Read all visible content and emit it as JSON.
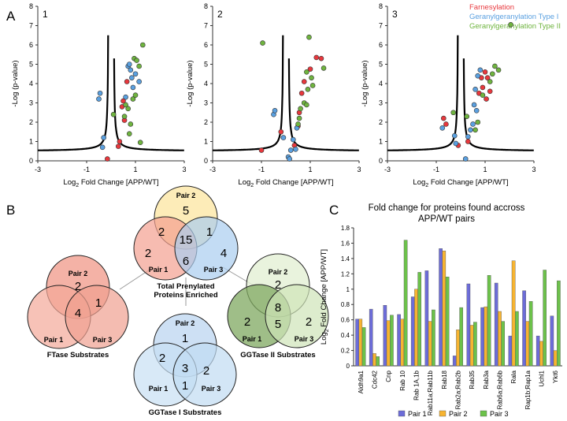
{
  "colors": {
    "farnesylation": "#e8383d",
    "ggtase1": "#5aa0e0",
    "ggtase2": "#6fb43f",
    "pair1": "#6c6cd8",
    "pair2": "#f7b431",
    "pair3": "#6cc24a"
  },
  "panel_a": {
    "label": "A",
    "x_ticks": [
      "-3",
      "-1",
      "1",
      "3"
    ],
    "y_ticks": [
      "0",
      "1",
      "2",
      "3",
      "4",
      "5",
      "6",
      "7",
      "8"
    ],
    "xlabel_pre": "Log",
    "xlabel_sub": "2",
    "xlabel_post": " Fold Change [APP/WT]",
    "ylabel": "-Log (p-value)",
    "legend": [
      "Farnesylation",
      "Geranylgeranylation Type I",
      "Geranylgeranylation Type II"
    ],
    "plots": [
      {
        "id": "1",
        "points": [
          {
            "x": 0.35,
            "y": 1.0,
            "c": "F"
          },
          {
            "x": 0.45,
            "y": 2.8,
            "c": "F"
          },
          {
            "x": 0.55,
            "y": 2.1,
            "c": "F"
          },
          {
            "x": 0.5,
            "y": 3.1,
            "c": "F"
          },
          {
            "x": -0.15,
            "y": 0.1,
            "c": "F"
          },
          {
            "x": 0.3,
            "y": 0.75,
            "c": "F"
          },
          {
            "x": 0.65,
            "y": 4.1,
            "c": "F"
          },
          {
            "x": 0.7,
            "y": 4.9,
            "c": "G1"
          },
          {
            "x": 0.85,
            "y": 4.3,
            "c": "G1"
          },
          {
            "x": 0.9,
            "y": 3.8,
            "c": "G1"
          },
          {
            "x": 1.0,
            "y": 4.5,
            "c": "G1"
          },
          {
            "x": 1.15,
            "y": 4.1,
            "c": "G1"
          },
          {
            "x": 0.8,
            "y": 4.7,
            "c": "G1"
          },
          {
            "x": 0.6,
            "y": 3.3,
            "c": "G1"
          },
          {
            "x": -0.45,
            "y": 3.5,
            "c": "G1"
          },
          {
            "x": -0.5,
            "y": 3.2,
            "c": "G1"
          },
          {
            "x": -0.3,
            "y": 1.2,
            "c": "G1"
          },
          {
            "x": -0.35,
            "y": 0.7,
            "c": "G1"
          },
          {
            "x": 0.75,
            "y": 5.0,
            "c": "G1"
          },
          {
            "x": 1.3,
            "y": 6.0,
            "c": "G2"
          },
          {
            "x": 0.95,
            "y": 5.3,
            "c": "G2"
          },
          {
            "x": 1.05,
            "y": 5.2,
            "c": "G2"
          },
          {
            "x": 1.15,
            "y": 4.9,
            "c": "G2"
          },
          {
            "x": 0.9,
            "y": 3.2,
            "c": "G2"
          },
          {
            "x": 0.6,
            "y": 2.9,
            "c": "G2"
          },
          {
            "x": 0.7,
            "y": 2.7,
            "c": "G2"
          },
          {
            "x": 0.55,
            "y": 2.3,
            "c": "G2"
          },
          {
            "x": 0.1,
            "y": 2.4,
            "c": "G2"
          },
          {
            "x": 0.8,
            "y": 1.9,
            "c": "G2"
          },
          {
            "x": 1.2,
            "y": 0.95,
            "c": "G2"
          },
          {
            "x": 0.75,
            "y": 1.4,
            "c": "G2"
          },
          {
            "x": 1.0,
            "y": 3.4,
            "c": "G2"
          }
        ]
      },
      {
        "id": "2",
        "points": [
          {
            "x": 1.25,
            "y": 5.35,
            "c": "F"
          },
          {
            "x": 1.45,
            "y": 5.3,
            "c": "F"
          },
          {
            "x": 1.0,
            "y": 4.75,
            "c": "F"
          },
          {
            "x": 0.75,
            "y": 4.1,
            "c": "F"
          },
          {
            "x": 0.65,
            "y": 3.5,
            "c": "F"
          },
          {
            "x": 0.55,
            "y": 2.5,
            "c": "F"
          },
          {
            "x": -0.2,
            "y": 1.5,
            "c": "F"
          },
          {
            "x": -1.0,
            "y": 0.55,
            "c": "F"
          },
          {
            "x": 0.35,
            "y": 0.8,
            "c": "F"
          },
          {
            "x": 0.5,
            "y": 1.8,
            "c": "F"
          },
          {
            "x": -0.5,
            "y": 2.4,
            "c": "G1"
          },
          {
            "x": -0.45,
            "y": 2.6,
            "c": "G1"
          },
          {
            "x": -0.1,
            "y": 1.2,
            "c": "G1"
          },
          {
            "x": 0.1,
            "y": 0.2,
            "c": "G1"
          },
          {
            "x": 0.2,
            "y": 0.55,
            "c": "G1"
          },
          {
            "x": 0.3,
            "y": 1.1,
            "c": "G1"
          },
          {
            "x": 0.15,
            "y": 0.1,
            "c": "G1"
          },
          {
            "x": 0.45,
            "y": 1.7,
            "c": "G1"
          },
          {
            "x": 0.4,
            "y": 0.6,
            "c": "G1"
          },
          {
            "x": 0.95,
            "y": 6.4,
            "c": "G2"
          },
          {
            "x": -0.95,
            "y": 6.1,
            "c": "G2"
          },
          {
            "x": 0.85,
            "y": 4.6,
            "c": "G2"
          },
          {
            "x": 1.05,
            "y": 4.3,
            "c": "G2"
          },
          {
            "x": 1.1,
            "y": 3.9,
            "c": "G2"
          },
          {
            "x": 0.9,
            "y": 3.7,
            "c": "G2"
          },
          {
            "x": 0.75,
            "y": 3.0,
            "c": "G2"
          },
          {
            "x": 0.85,
            "y": 2.9,
            "c": "G2"
          },
          {
            "x": 0.6,
            "y": 2.7,
            "c": "G2"
          },
          {
            "x": 0.55,
            "y": 2.2,
            "c": "G2"
          },
          {
            "x": 0.5,
            "y": 1.9,
            "c": "G2"
          },
          {
            "x": 1.55,
            "y": 4.8,
            "c": "G2"
          }
        ]
      },
      {
        "id": "3",
        "points": [
          {
            "x": 1.0,
            "y": 4.6,
            "c": "F"
          },
          {
            "x": 1.1,
            "y": 4.3,
            "c": "F"
          },
          {
            "x": 0.85,
            "y": 4.3,
            "c": "F"
          },
          {
            "x": 0.9,
            "y": 3.8,
            "c": "F"
          },
          {
            "x": 1.2,
            "y": 3.6,
            "c": "F"
          },
          {
            "x": 0.75,
            "y": 3.5,
            "c": "F"
          },
          {
            "x": 1.05,
            "y": 3.2,
            "c": "F"
          },
          {
            "x": -0.7,
            "y": 2.2,
            "c": "F"
          },
          {
            "x": -0.6,
            "y": 1.9,
            "c": "F"
          },
          {
            "x": -0.1,
            "y": 0.8,
            "c": "F"
          },
          {
            "x": 0.3,
            "y": 1.0,
            "c": "F"
          },
          {
            "x": 0.8,
            "y": 4.7,
            "c": "G1"
          },
          {
            "x": 0.7,
            "y": 4.4,
            "c": "G1"
          },
          {
            "x": 0.6,
            "y": 3.7,
            "c": "G1"
          },
          {
            "x": 0.55,
            "y": 2.9,
            "c": "G1"
          },
          {
            "x": 0.65,
            "y": 2.6,
            "c": "G1"
          },
          {
            "x": 0.5,
            "y": 1.9,
            "c": "G1"
          },
          {
            "x": 0.4,
            "y": 1.6,
            "c": "G1"
          },
          {
            "x": -0.25,
            "y": 1.3,
            "c": "G1"
          },
          {
            "x": -0.2,
            "y": 0.9,
            "c": "G1"
          },
          {
            "x": 0.2,
            "y": 0.1,
            "c": "G1"
          },
          {
            "x": -0.75,
            "y": 1.7,
            "c": "G1"
          },
          {
            "x": 0.3,
            "y": 1.25,
            "c": "G1"
          },
          {
            "x": 2.05,
            "y": 7.05,
            "c": "G2"
          },
          {
            "x": 1.4,
            "y": 4.9,
            "c": "G2"
          },
          {
            "x": 1.55,
            "y": 4.7,
            "c": "G2"
          },
          {
            "x": 1.3,
            "y": 4.5,
            "c": "G2"
          },
          {
            "x": 1.2,
            "y": 4.1,
            "c": "G2"
          },
          {
            "x": 0.9,
            "y": 3.4,
            "c": "G2"
          },
          {
            "x": 0.7,
            "y": 2.0,
            "c": "G2"
          },
          {
            "x": 0.6,
            "y": 1.6,
            "c": "G2"
          },
          {
            "x": 0.25,
            "y": 2.3,
            "c": "G2"
          },
          {
            "x": -0.3,
            "y": 2.5,
            "c": "G2"
          }
        ]
      }
    ]
  },
  "panel_b": {
    "label": "B",
    "label_pair1": "Pair 1",
    "label_pair2": "Pair 2",
    "label_pair3": "Pair 3",
    "total": {
      "title_line1": "Total Prenylated",
      "title_line2": "Proteins Enriched",
      "n_p2": "5",
      "n_p12": "2",
      "n_p23": "1",
      "n_all": "15",
      "n_p1": "2",
      "n_p3": "4",
      "n_p13": "6"
    },
    "ftase": {
      "title": "FTase Substrates",
      "n_p2": "2",
      "n_p23": "1",
      "n_all": "4"
    },
    "ggt1": {
      "title": "GGTase I Substrates",
      "n_p2": "1",
      "n_p12": "2",
      "n_all": "3",
      "n_p3": "2",
      "n_p13": "1"
    },
    "ggt2": {
      "title": "GGTase II Substrates",
      "n_p2": "2",
      "n_all": "8",
      "n_p1": "2",
      "n_p3": "2",
      "n_p13": "5"
    }
  },
  "panel_c": {
    "label": "C",
    "ylabel_pre": "Log",
    "ylabel_sub": "2",
    "ylabel_post": " Fold Change [APP/WT]"
  },
  "chart_data": [
    {
      "type": "bar",
      "title": "Fold change for proteins found accross APP/WT pairs",
      "title_line1": "Fold change for proteins found accross",
      "title_line2": "APP/WT pairs",
      "ylabel": "Log2 Fold Change [APP/WT]",
      "ylim": [
        0,
        1.8
      ],
      "y_ticks": [
        "0",
        "0.2",
        "0.4",
        "0.6",
        "0.8",
        "1",
        "1.2",
        "1.4",
        "1.6",
        "1.8"
      ],
      "categories": [
        "Aldh9a1",
        "Cdc42",
        "Cnp",
        "Rab 10",
        "Rab 1A,1b",
        "Rab11a;Rab11b",
        "Rab18",
        "Rab2a;Rab2b",
        "Rab35",
        "Rab3a",
        "Rab6a;Rab6b",
        "Rala",
        "Rap1b;Rap1a",
        "Uchl1",
        "Ykt6"
      ],
      "series": [
        {
          "name": "Pair 1",
          "values": [
            0.61,
            0.74,
            0.79,
            0.67,
            0.9,
            1.24,
            1.53,
            0.13,
            1.07,
            0.76,
            1.08,
            0.39,
            0.98,
            0.39,
            0.65
          ]
        },
        {
          "name": "Pair 2",
          "values": [
            0.61,
            0.16,
            0.59,
            0.61,
            1.0,
            0.58,
            1.5,
            0.47,
            0.53,
            0.77,
            0.71,
            1.37,
            0.58,
            0.32,
            0.2
          ]
        },
        {
          "name": "Pair 3",
          "values": [
            0.5,
            0.12,
            0.66,
            1.64,
            1.22,
            0.73,
            1.16,
            0.76,
            0.57,
            1.18,
            0.58,
            0.71,
            0.84,
            1.25,
            1.11
          ]
        }
      ]
    }
  ]
}
